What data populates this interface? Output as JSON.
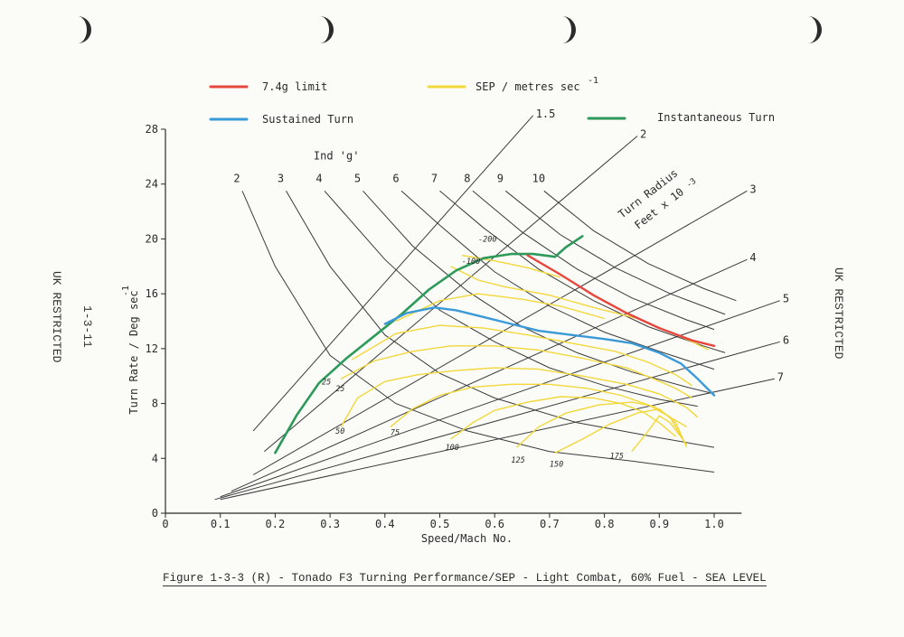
{
  "chart_data": {
    "type": "line",
    "title": "Figure 1-3-3 (R) - Tonado F3 Turning Performance/SEP - Light Combat, 60% Fuel - SEA LEVEL",
    "xlabel": "Speed/Mach No.",
    "ylabel": "Turn Rate / Deg sec",
    "ylabel_exp": "-1",
    "xlim": [
      0,
      1.05
    ],
    "ylim": [
      0,
      28
    ],
    "x_ticks": [
      0,
      0.1,
      0.2,
      0.3,
      0.4,
      0.5,
      0.6,
      0.7,
      0.8,
      0.9,
      1.0
    ],
    "x_tick_labels": [
      "0",
      "0.1",
      "0.2",
      "0.3",
      "0.4",
      "0.5",
      "0.6",
      "0.7",
      "0.8",
      "0.9",
      "1.0"
    ],
    "y_ticks": [
      0,
      4,
      8,
      12,
      16,
      20,
      24,
      28
    ],
    "y_tick_labels": [
      "0",
      "4",
      "8",
      "12",
      "16",
      "20",
      "24",
      "28"
    ],
    "legend": [
      {
        "name": "7.4g limit",
        "color": "#e8453c"
      },
      {
        "name": "SEP / metres sec",
        "sup": "-1",
        "color": "#f2d83a"
      },
      {
        "name": "Sustained Turn",
        "color": "#3a9ad8"
      },
      {
        "name": "Instantaneous Turn",
        "color": "#2e9a5a"
      }
    ],
    "g_title": "Ind 'g'",
    "g_lines": [
      {
        "label": "2",
        "points": [
          [
            0.14,
            23.5
          ],
          [
            0.2,
            18
          ],
          [
            0.3,
            11.5
          ],
          [
            0.42,
            8
          ],
          [
            0.55,
            6
          ],
          [
            0.7,
            4.5
          ],
          [
            0.85,
            3.8
          ],
          [
            1.0,
            3.0
          ]
        ]
      },
      {
        "label": "3",
        "points": [
          [
            0.22,
            23.5
          ],
          [
            0.3,
            18
          ],
          [
            0.4,
            13
          ],
          [
            0.5,
            10.2
          ],
          [
            0.6,
            8.4
          ],
          [
            0.75,
            6.6
          ],
          [
            0.9,
            5.5
          ],
          [
            1.0,
            4.8
          ]
        ]
      },
      {
        "label": "4",
        "points": [
          [
            0.29,
            23.5
          ],
          [
            0.4,
            18.5
          ],
          [
            0.5,
            14.8
          ],
          [
            0.6,
            12.5
          ],
          [
            0.7,
            10.6
          ],
          [
            0.8,
            9.3
          ],
          [
            0.9,
            8.3
          ],
          [
            0.97,
            7.8
          ]
        ]
      },
      {
        "label": "5",
        "points": [
          [
            0.36,
            23.5
          ],
          [
            0.45,
            19.5
          ],
          [
            0.55,
            16.2
          ],
          [
            0.65,
            13.6
          ],
          [
            0.75,
            11.7
          ],
          [
            0.85,
            10.3
          ],
          [
            0.95,
            9.2
          ],
          [
            1.0,
            8.7
          ]
        ]
      },
      {
        "label": "6",
        "points": [
          [
            0.43,
            23.5
          ],
          [
            0.5,
            21
          ],
          [
            0.6,
            17.6
          ],
          [
            0.7,
            15.1
          ],
          [
            0.8,
            13.2
          ],
          [
            0.9,
            11.8
          ],
          [
            1.0,
            10.5
          ]
        ]
      },
      {
        "label": "7",
        "points": [
          [
            0.5,
            23.5
          ],
          [
            0.58,
            20.8
          ],
          [
            0.68,
            17.8
          ],
          [
            0.78,
            15.5
          ],
          [
            0.88,
            13.6
          ],
          [
            0.98,
            12.2
          ],
          [
            1.02,
            11.7
          ]
        ]
      },
      {
        "label": "8",
        "points": [
          [
            0.56,
            23.5
          ],
          [
            0.65,
            20.5
          ],
          [
            0.75,
            17.8
          ],
          [
            0.85,
            15.7
          ],
          [
            0.95,
            14.1
          ],
          [
            1.0,
            13.4
          ]
        ]
      },
      {
        "label": "9",
        "points": [
          [
            0.62,
            23.5
          ],
          [
            0.72,
            20.3
          ],
          [
            0.82,
            17.9
          ],
          [
            0.92,
            16.0
          ],
          [
            1.02,
            14.5
          ]
        ]
      },
      {
        "label": "10",
        "points": [
          [
            0.69,
            23.5
          ],
          [
            0.78,
            20.6
          ],
          [
            0.88,
            18.2
          ],
          [
            0.98,
            16.4
          ],
          [
            1.04,
            15.5
          ]
        ]
      }
    ],
    "radius_title": "Turn Radius",
    "radius_subtitle": "Feet x 10",
    "radius_exp": "-3",
    "radius_lines": [
      {
        "label": "1.5",
        "points": [
          [
            0.16,
            6
          ],
          [
            0.67,
            29
          ]
        ]
      },
      {
        "label": "2",
        "points": [
          [
            0.18,
            4.5
          ],
          [
            0.86,
            27.5
          ]
        ]
      },
      {
        "label": "3",
        "points": [
          [
            0.16,
            2.8
          ],
          [
            1.06,
            23.5
          ]
        ]
      },
      {
        "label": "4",
        "points": [
          [
            0.12,
            1.6
          ],
          [
            1.06,
            18.5
          ]
        ]
      },
      {
        "label": "5",
        "points": [
          [
            0.1,
            1.2
          ],
          [
            1.12,
            15.5
          ]
        ]
      },
      {
        "label": "6",
        "points": [
          [
            0.09,
            1.0
          ],
          [
            1.12,
            12.5
          ]
        ]
      },
      {
        "label": "7",
        "points": [
          [
            0.1,
            1.0
          ],
          [
            1.11,
            9.8
          ]
        ]
      }
    ],
    "series": [
      {
        "name": "Instantaneous Turn",
        "color": "#2e9a5a",
        "width": 2.6,
        "points": [
          [
            0.2,
            4.4
          ],
          [
            0.24,
            7.2
          ],
          [
            0.28,
            9.5
          ],
          [
            0.33,
            11.3
          ],
          [
            0.38,
            12.9
          ],
          [
            0.43,
            14.5
          ],
          [
            0.48,
            16.3
          ],
          [
            0.53,
            17.7
          ],
          [
            0.58,
            18.6
          ],
          [
            0.63,
            18.9
          ],
          [
            0.67,
            18.9
          ],
          [
            0.71,
            18.7
          ],
          [
            0.73,
            19.4
          ],
          [
            0.76,
            20.2
          ]
        ]
      },
      {
        "name": "Sustained Turn",
        "color": "#3a9ad8",
        "width": 2.4,
        "points": [
          [
            0.4,
            13.8
          ],
          [
            0.44,
            14.6
          ],
          [
            0.49,
            15.0
          ],
          [
            0.53,
            14.8
          ],
          [
            0.58,
            14.3
          ],
          [
            0.63,
            13.8
          ],
          [
            0.68,
            13.3
          ],
          [
            0.74,
            13.0
          ],
          [
            0.8,
            12.7
          ],
          [
            0.85,
            12.4
          ],
          [
            0.9,
            11.7
          ],
          [
            0.94,
            10.9
          ],
          [
            0.97,
            9.8
          ],
          [
            1.0,
            8.6
          ]
        ]
      },
      {
        "name": "7.4g limit",
        "color": "#e8453c",
        "width": 2.4,
        "points": [
          [
            0.66,
            18.8
          ],
          [
            0.72,
            17.4
          ],
          [
            0.78,
            15.9
          ],
          [
            0.84,
            14.6
          ],
          [
            0.9,
            13.5
          ],
          [
            0.96,
            12.6
          ],
          [
            1.0,
            12.2
          ]
        ]
      }
    ],
    "sep_curves": [
      {
        "label": "-200",
        "points": [
          [
            0.54,
            18.8
          ],
          [
            0.6,
            18.4
          ],
          [
            0.66,
            17.9
          ],
          [
            0.72,
            17.2
          ]
        ]
      },
      {
        "label": "-100",
        "points": [
          [
            0.52,
            18.0
          ],
          [
            0.57,
            17.0
          ],
          [
            0.62,
            16.5
          ],
          [
            0.7,
            15.9
          ],
          [
            0.78,
            15.0
          ],
          [
            0.86,
            14.2
          ],
          [
            0.92,
            13.2
          ],
          [
            0.96,
            12.5
          ],
          [
            0.99,
            11.9
          ]
        ]
      },
      {
        "label": "",
        "points": [
          [
            0.42,
            14.0
          ],
          [
            0.5,
            15.5
          ],
          [
            0.57,
            16.0
          ],
          [
            0.65,
            15.6
          ],
          [
            0.72,
            15.1
          ],
          [
            0.8,
            14.2
          ]
        ]
      },
      {
        "label": "",
        "points": [
          [
            0.34,
            11.2
          ],
          [
            0.42,
            13.1
          ],
          [
            0.5,
            13.7
          ],
          [
            0.58,
            13.5
          ],
          [
            0.66,
            13.0
          ],
          [
            0.74,
            12.4
          ],
          [
            0.82,
            11.8
          ],
          [
            0.88,
            11.0
          ],
          [
            0.93,
            10.1
          ],
          [
            0.96,
            9.3
          ]
        ]
      },
      {
        "label": "25",
        "points": [
          [
            0.32,
            9.8
          ],
          [
            0.38,
            11.1
          ],
          [
            0.45,
            11.8
          ],
          [
            0.52,
            12.2
          ],
          [
            0.6,
            12.2
          ],
          [
            0.68,
            11.9
          ],
          [
            0.76,
            11.3
          ],
          [
            0.84,
            10.6
          ],
          [
            0.89,
            9.8
          ],
          [
            0.93,
            9.1
          ],
          [
            0.96,
            8.4
          ]
        ]
      },
      {
        "label": "50",
        "points": [
          [
            0.32,
            6.3
          ],
          [
            0.35,
            8.4
          ],
          [
            0.4,
            9.6
          ],
          [
            0.46,
            10.1
          ],
          [
            0.53,
            10.4
          ],
          [
            0.6,
            10.6
          ],
          [
            0.68,
            10.5
          ],
          [
            0.76,
            10.0
          ],
          [
            0.84,
            9.4
          ],
          [
            0.9,
            8.7
          ],
          [
            0.95,
            7.7
          ],
          [
            0.97,
            7.0
          ]
        ]
      },
      {
        "label": "75",
        "points": [
          [
            0.41,
            6.3
          ],
          [
            0.45,
            7.6
          ],
          [
            0.5,
            8.6
          ],
          [
            0.56,
            9.2
          ],
          [
            0.63,
            9.4
          ],
          [
            0.7,
            9.4
          ],
          [
            0.77,
            9.1
          ],
          [
            0.83,
            8.6
          ],
          [
            0.88,
            7.9
          ],
          [
            0.92,
            7.0
          ],
          [
            0.95,
            6.3
          ]
        ]
      },
      {
        "label": "100",
        "points": [
          [
            0.52,
            5.4
          ],
          [
            0.56,
            6.6
          ],
          [
            0.6,
            7.5
          ],
          [
            0.66,
            8.1
          ],
          [
            0.72,
            8.5
          ],
          [
            0.78,
            8.4
          ],
          [
            0.83,
            8.0
          ],
          [
            0.87,
            7.4
          ],
          [
            0.9,
            6.6
          ],
          [
            0.93,
            5.6
          ]
        ]
      },
      {
        "label": "125",
        "points": [
          [
            0.64,
            4.8
          ],
          [
            0.68,
            6.3
          ],
          [
            0.73,
            7.3
          ],
          [
            0.79,
            7.9
          ],
          [
            0.85,
            8.1
          ],
          [
            0.89,
            7.8
          ],
          [
            0.92,
            7.0
          ],
          [
            0.94,
            5.6
          ]
        ]
      },
      {
        "label": "150",
        "points": [
          [
            0.71,
            4.4
          ],
          [
            0.76,
            5.4
          ],
          [
            0.81,
            6.5
          ],
          [
            0.86,
            7.3
          ],
          [
            0.9,
            7.6
          ],
          [
            0.93,
            6.6
          ],
          [
            0.95,
            4.8
          ]
        ]
      },
      {
        "label": "175",
        "points": [
          [
            0.85,
            4.5
          ],
          [
            0.88,
            6.0
          ],
          [
            0.9,
            7.1
          ],
          [
            0.92,
            6.6
          ],
          [
            0.95,
            5.0
          ]
        ]
      }
    ],
    "sep_labels": [
      {
        "text": "-200",
        "x": 0.57,
        "y": 19.8
      },
      {
        "text": "-100",
        "x": 0.54,
        "y": 18.2
      },
      {
        "text": "25",
        "x": 0.285,
        "y": 9.4
      },
      {
        "text": "25",
        "x": 0.31,
        "y": 8.9
      },
      {
        "text": "50",
        "x": 0.31,
        "y": 5.8
      },
      {
        "text": "75",
        "x": 0.41,
        "y": 5.7
      },
      {
        "text": "100",
        "x": 0.51,
        "y": 4.6
      },
      {
        "text": "125",
        "x": 0.63,
        "y": 3.7
      },
      {
        "text": "150",
        "x": 0.7,
        "y": 3.4
      },
      {
        "text": "175",
        "x": 0.81,
        "y": 4.0
      }
    ]
  },
  "side_left": {
    "line1": "UK RESTRICTED",
    "line2": "1-3-11"
  },
  "side_right": "UK RESTRICTED"
}
